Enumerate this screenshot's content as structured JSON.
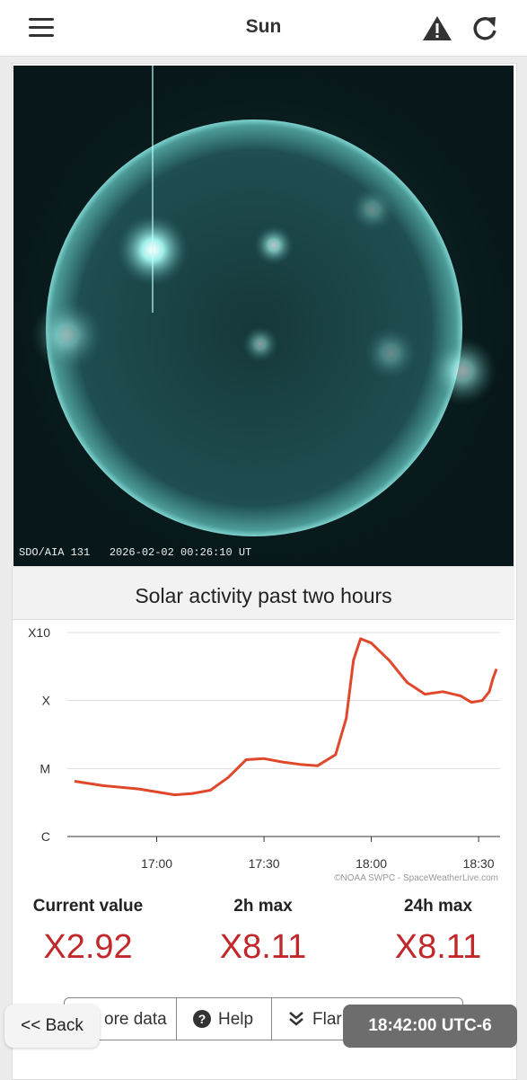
{
  "header": {
    "title": "Sun"
  },
  "image": {
    "caption": "SDO/AIA 131   2026-02-02 00:26:10 UT"
  },
  "chart_data": {
    "type": "line",
    "title": "Solar activity past two hours",
    "credit": "©NOAA SWPC - SpaceWeatherLive.com",
    "x": [
      "16:37",
      "16:45",
      "16:55",
      "17:05",
      "17:10",
      "17:15",
      "17:20",
      "17:25",
      "17:30",
      "17:35",
      "17:40",
      "17:45",
      "17:50",
      "17:53",
      "17:55",
      "17:57",
      "18:00",
      "18:05",
      "18:10",
      "18:15",
      "18:20",
      "18:25",
      "18:28",
      "18:31",
      "18:33",
      "18:34",
      "18:35"
    ],
    "series": [
      {
        "color": "#e0482c",
        "values": [
          6.5e-06,
          5.6e-06,
          5e-06,
          4.1e-06,
          4.3e-06,
          4.8e-06,
          7.4e-06,
          1.35e-05,
          1.4e-05,
          1.25e-05,
          1.15e-05,
          1.1e-05,
          1.6e-05,
          5.5e-05,
          0.00039,
          0.000811,
          0.0007,
          0.00039,
          0.000185,
          0.000124,
          0.000135,
          0.000117,
          9.4e-05,
          0.0001,
          0.000135,
          0.00021,
          0.000292
        ]
      }
    ],
    "xlim": [
      "16:35",
      "18:36"
    ],
    "xticks": [
      "17:00",
      "17:30",
      "18:00",
      "18:30"
    ],
    "ylim": [
      1e-06,
      0.001
    ],
    "log_y": true,
    "grid": true,
    "yticks": [
      {
        "value": 1e-06,
        "label": "C"
      },
      {
        "value": 1e-05,
        "label": "M"
      },
      {
        "value": 0.0001,
        "label": "X"
      },
      {
        "value": 0.001,
        "label": "X10"
      }
    ]
  },
  "stats": [
    {
      "label": "Current value",
      "value": "X2.92"
    },
    {
      "label": "2h max",
      "value": "X8.11"
    },
    {
      "label": "24h max",
      "value": "X8.11"
    }
  ],
  "buttons": [
    "ore data",
    "Help",
    "Flar"
  ],
  "back": "<< Back",
  "time": "18:42:00 UTC-6"
}
